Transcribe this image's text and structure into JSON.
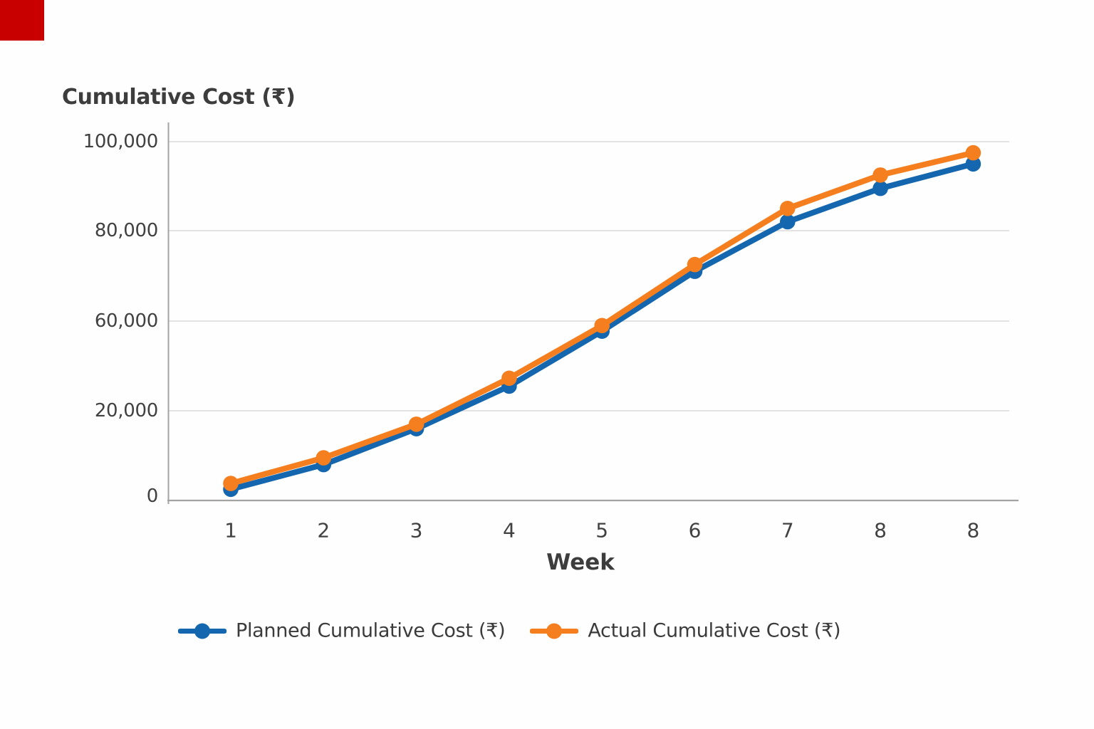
{
  "corner_marker": {
    "color": "#c80000"
  },
  "chart_data": {
    "type": "line",
    "title": "Cumulative Cost (₹)",
    "xlabel": "Week",
    "x_tick_labels": [
      "1",
      "2",
      "3",
      "4",
      "5",
      "6",
      "7",
      "8",
      "8"
    ],
    "y_tick_labels": [
      "100,000",
      "80,000",
      "60,000",
      "20,000",
      "0"
    ],
    "y_tick_values": [
      100000,
      80000,
      60000,
      20000,
      0
    ],
    "ylim": [
      0,
      100000
    ],
    "grid": "horizontal",
    "legend_position": "bottom",
    "series": [
      {
        "name": "Planned Cumulative Cost (₹)",
        "color": "#1467ae",
        "values": [
          2500,
          8000,
          16000,
          31000,
          55500,
          71000,
          82000,
          89500,
          95000
        ]
      },
      {
        "name": "Actual Cumulative Cost (₹)",
        "color": "#f57e1e",
        "values": [
          3800,
          9500,
          17000,
          34500,
          58000,
          72500,
          85000,
          92500,
          97500
        ]
      }
    ],
    "style": {
      "background": "#fdfefd",
      "grid_color": "#d9d9d9",
      "axis_color": "#a3a3a3",
      "text_color": "#3d3d3d"
    }
  }
}
